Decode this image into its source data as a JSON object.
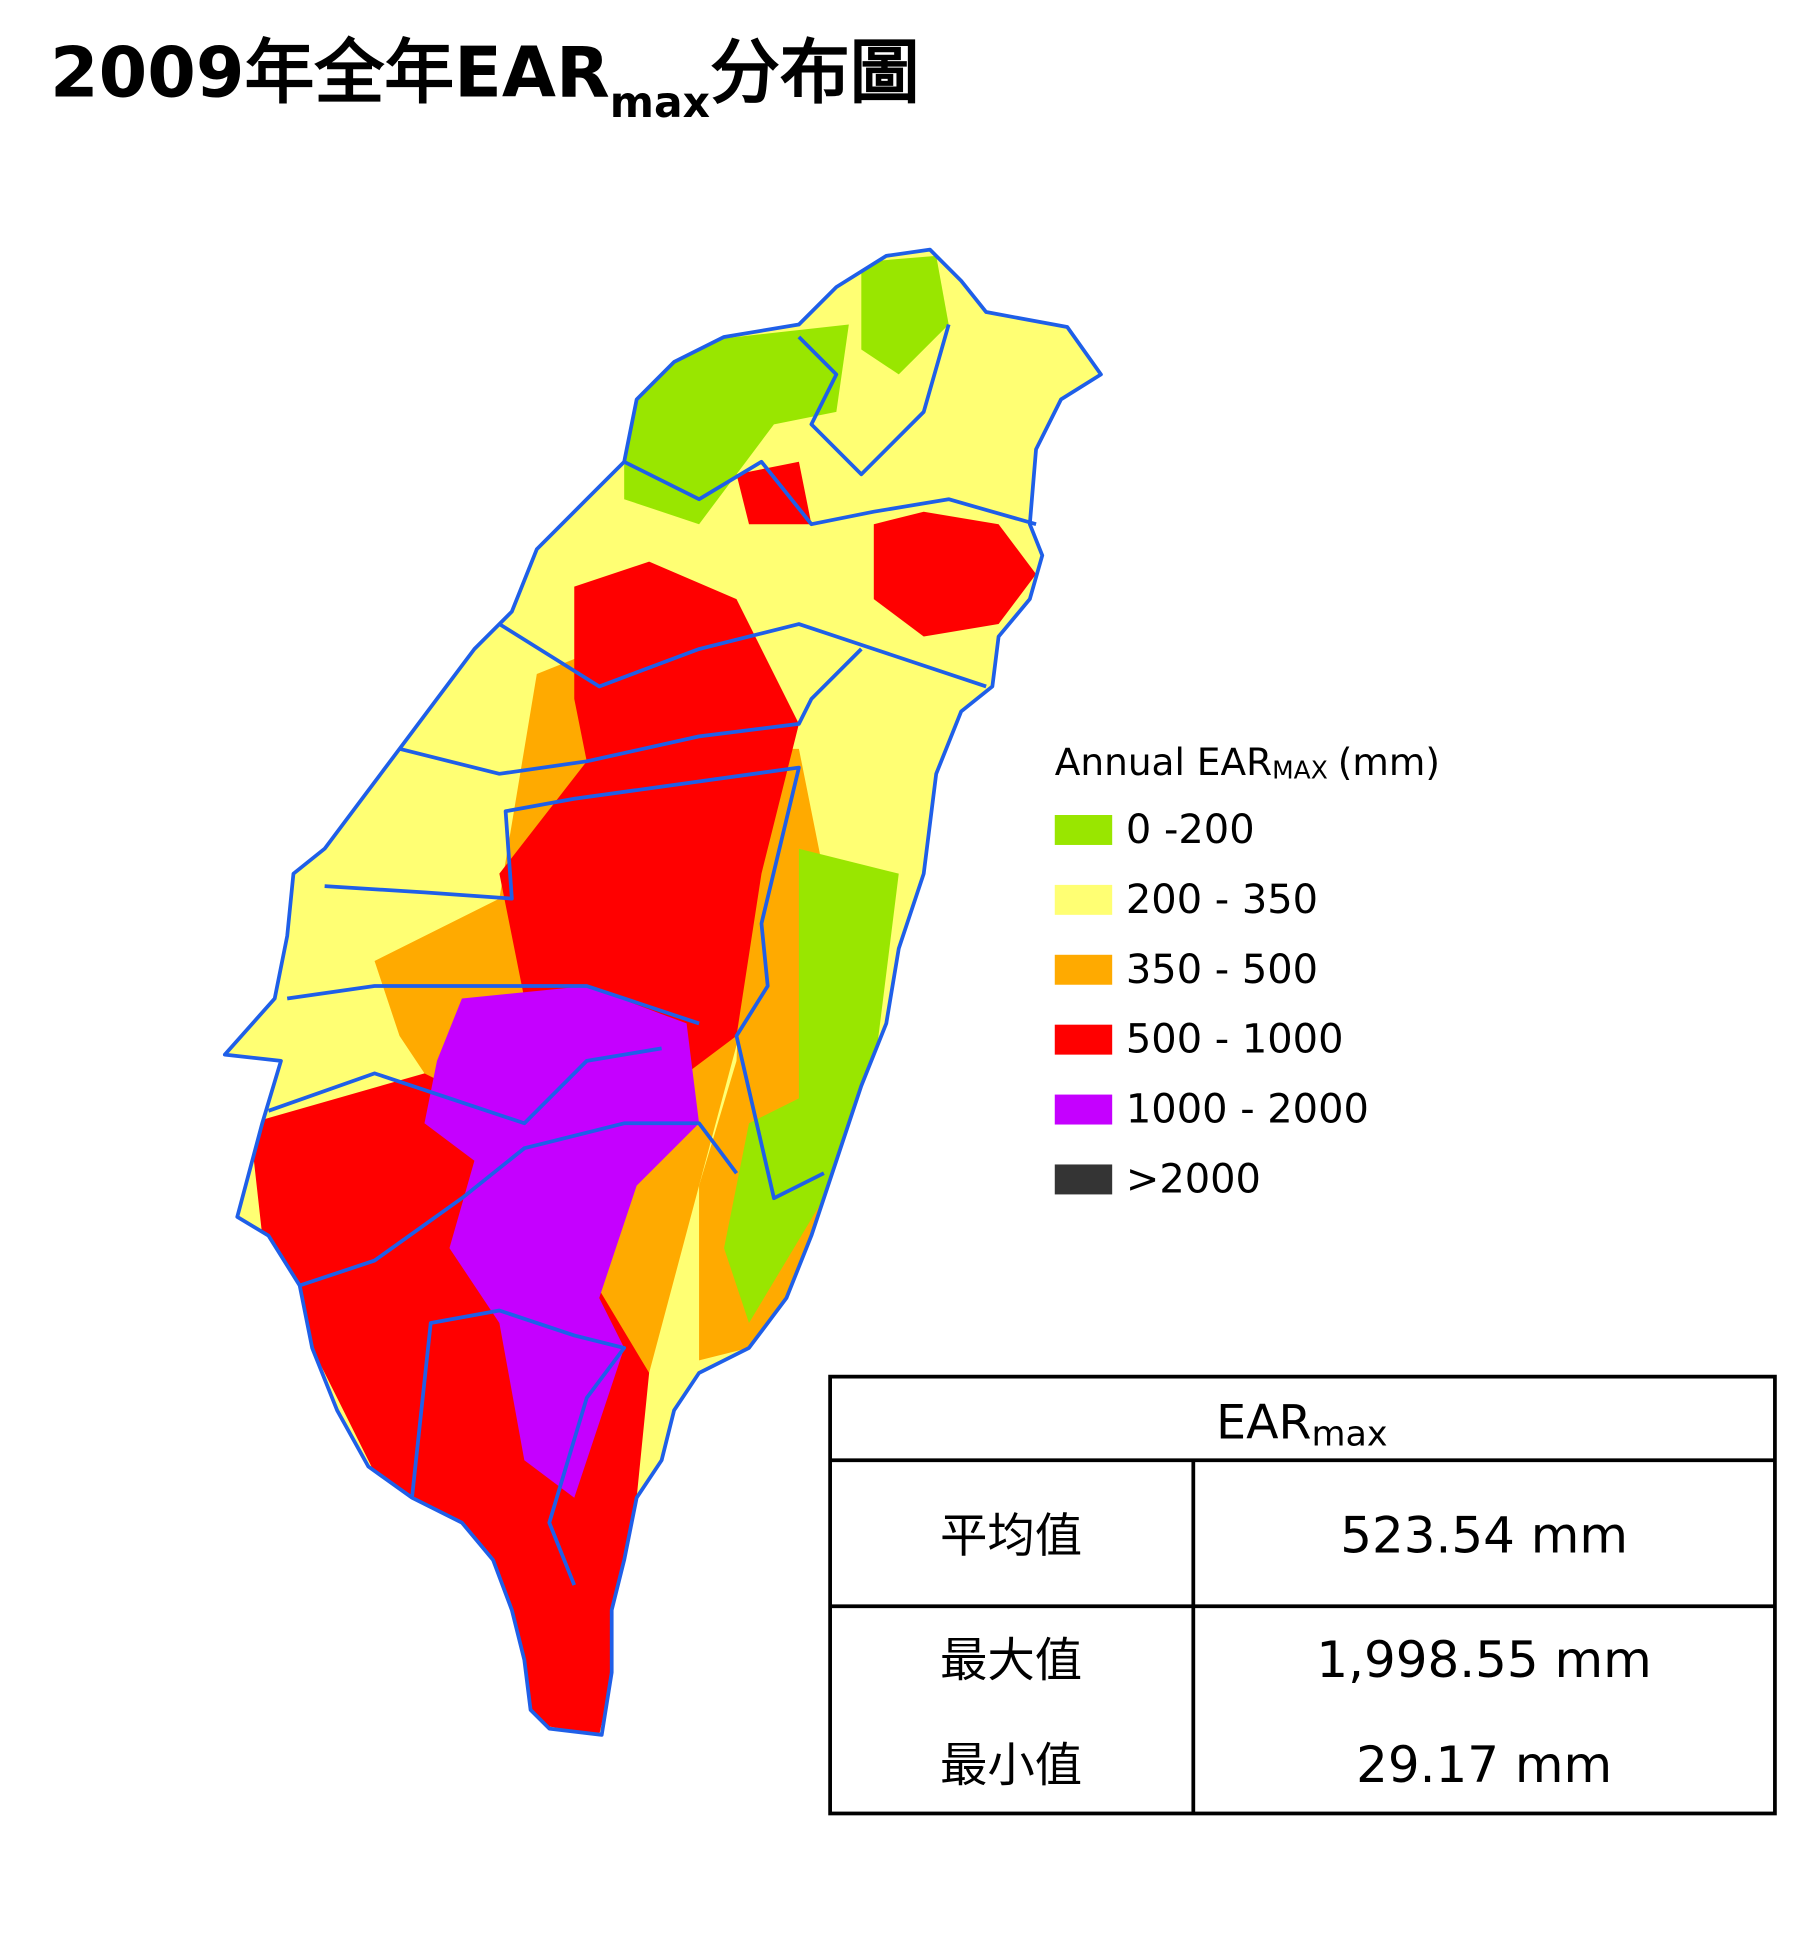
{
  "title": {
    "main": "2009年全年EAR",
    "subscript": "max",
    "suffix": "分布圖"
  },
  "legend": {
    "title": {
      "main": "Annual EAR",
      "subscript": "MAX",
      "unit": "(mm)"
    },
    "items": [
      {
        "label": "0 -200",
        "color": "#99e600"
      },
      {
        "label": "200 - 350",
        "color": "#ffff73"
      },
      {
        "label": "350 - 500",
        "color": "#ffaa00"
      },
      {
        "label": "500 - 1000",
        "color": "#ff0000"
      },
      {
        "label": "1000 - 2000",
        "color": "#c500ff"
      },
      {
        "label": ">2000",
        "color": "#343434"
      }
    ]
  },
  "table": {
    "header": {
      "main": "EAR",
      "subscript": "max"
    },
    "rows": [
      [
        "平均值",
        "523.54 mm"
      ],
      [
        "最大值",
        "1,998.55 mm"
      ],
      [
        "最小值",
        "29.17 mm"
      ]
    ]
  }
}
